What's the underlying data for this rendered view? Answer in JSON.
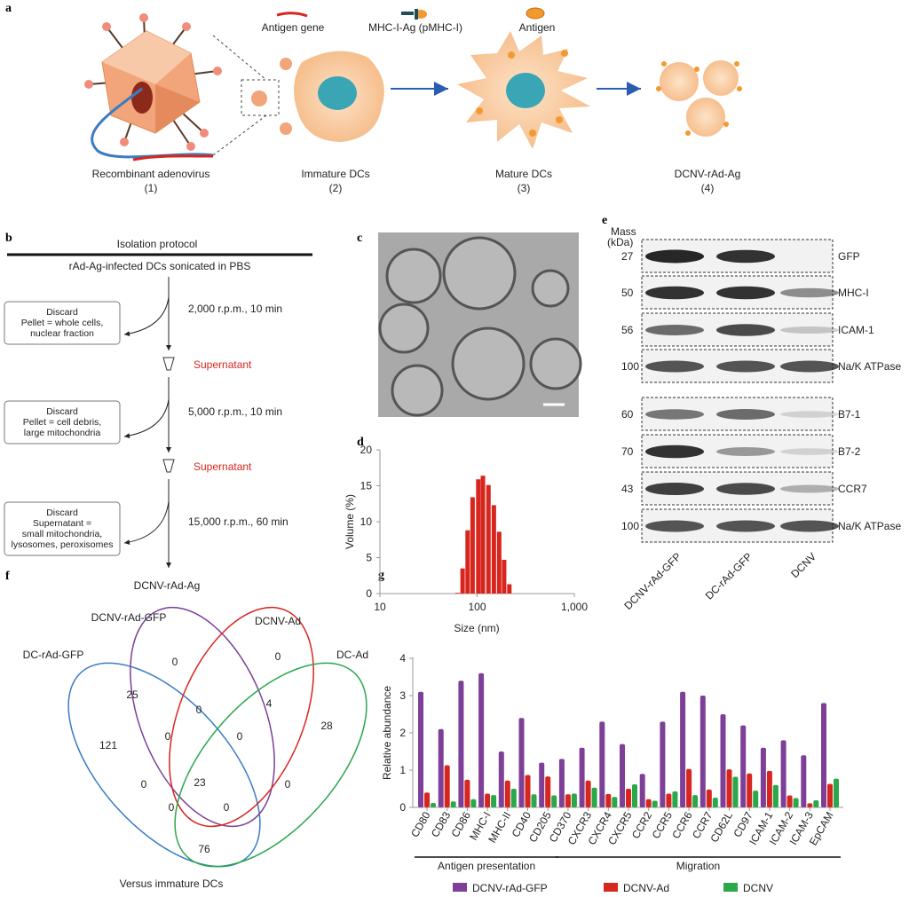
{
  "panel_labels": {
    "a": "a",
    "b": "b",
    "c": "c",
    "d": "d",
    "e": "e",
    "f": "f",
    "g": "g"
  },
  "a": {
    "legend": {
      "antigen_gene": "Antigen gene",
      "pmhc": "MHC-I-Ag (pMHC-I)",
      "antigen": "Antigen"
    },
    "steps": [
      {
        "name": "Recombinant adenovirus",
        "num": "(1)"
      },
      {
        "name": "Immature DCs",
        "num": "(2)"
      },
      {
        "name": "Mature DCs",
        "num": "(3)"
      },
      {
        "name": "DCNV-rAd-Ag",
        "num": "(4)"
      }
    ]
  },
  "b": {
    "title": "Isolation protocol",
    "start": "rAd-Ag-infected DCs sonicated in PBS",
    "spins": [
      "2,000 r.p.m., 10 min",
      "5,000 r.p.m., 10 min",
      "15,000 r.p.m., 60 min"
    ],
    "discards": [
      [
        "Discard",
        "Pellet = whole cells,",
        "nuclear fraction"
      ],
      [
        "Discard",
        "Pellet = cell debris,",
        "large mitochondria"
      ],
      [
        "Discard",
        "Supernatant =",
        "small mitochondria,",
        "lysosomes, peroxisomes"
      ]
    ],
    "supernatant": "Supernatant",
    "end": "DCNV-rAd-Ag"
  },
  "e": {
    "mass_header": [
      "Mass",
      "(kDa)"
    ],
    "rows": [
      {
        "mass": "27",
        "label": "GFP",
        "bands": [
          0.9,
          0.85,
          0.0
        ]
      },
      {
        "mass": "50",
        "label": "MHC-I",
        "bands": [
          0.85,
          0.85,
          0.45
        ]
      },
      {
        "mass": "56",
        "label": "ICAM-1",
        "bands": [
          0.6,
          0.75,
          0.2
        ]
      },
      {
        "mass": "100",
        "label": "Na/K ATPase",
        "bands": [
          0.7,
          0.7,
          0.7
        ]
      },
      {
        "mass": "60",
        "label": "B7-1",
        "bands": [
          0.55,
          0.6,
          0.15
        ]
      },
      {
        "mass": "70",
        "label": "B7-2",
        "bands": [
          0.85,
          0.4,
          0.15
        ]
      },
      {
        "mass": "43",
        "label": "CCR7",
        "bands": [
          0.8,
          0.75,
          0.3
        ]
      },
      {
        "mass": "100",
        "label": "Na/K ATPase",
        "bands": [
          0.7,
          0.7,
          0.7
        ]
      }
    ],
    "lanes": [
      "DCNV-rAd-GFP",
      "DC-rAd-GFP",
      "DCNV"
    ]
  },
  "f": {
    "sets": [
      "DC-rAd-GFP",
      "DCNV-rAd-GFP",
      "DCNV-Ad",
      "DC-Ad"
    ],
    "colors": [
      "#3a7cc4",
      "#7d3f98",
      "#d7261e",
      "#2aa84a"
    ],
    "counts": [
      "0",
      "0",
      "25",
      "0",
      "4",
      "28",
      "121",
      "0",
      "0",
      "0",
      "23",
      "0",
      "0",
      "0",
      "76"
    ],
    "caption": "Versus immature DCs"
  },
  "chart_data": [
    {
      "type": "bar",
      "xlabel": "Size (nm)",
      "ylabel": "Volume (%)",
      "x_scale": "log",
      "xlim": [
        10,
        1000
      ],
      "ylim": [
        0,
        20
      ],
      "xticks": [
        "10",
        "100",
        "1,000"
      ],
      "yticks": [
        "0",
        "5",
        "10",
        "15",
        "20"
      ],
      "x": [
        63,
        71,
        80,
        90,
        103,
        115,
        131,
        149,
        169,
        190,
        215
      ],
      "values": [
        0.1,
        3.5,
        8.8,
        13.4,
        15.9,
        16.4,
        15.1,
        12.3,
        8.6,
        4.7,
        1.3
      ],
      "color": "#d7261e"
    },
    {
      "type": "bar",
      "ylabel": "Relative abundance",
      "ylim": [
        0,
        4
      ],
      "yticks": [
        "0",
        "1",
        "2",
        "3",
        "4"
      ],
      "categories": [
        "CD80",
        "CD83",
        "CD86",
        "MHC-I",
        "MHC-II",
        "CD40",
        "CD205",
        "CD370",
        "CXCR3",
        "CXCR4",
        "CXCR5",
        "CCR2",
        "CCR5",
        "CCR6",
        "CCR7",
        "CD62L",
        "CD97",
        "ICAM-1",
        "ICAM-2",
        "ICAM-3",
        "EpCAM"
      ],
      "groups": [
        {
          "label": "Antigen presentation",
          "from": 0,
          "to": 6
        },
        {
          "label": "Migration",
          "from": 7,
          "to": 20
        }
      ],
      "series": [
        {
          "name": "DCNV-rAd-GFP",
          "color": "#7d3f98",
          "values": [
            3.1,
            2.1,
            3.4,
            3.6,
            1.5,
            2.4,
            1.2,
            1.3,
            1.6,
            2.3,
            1.7,
            0.9,
            2.3,
            3.1,
            3.0,
            2.5,
            2.2,
            1.6,
            1.8,
            1.4,
            2.8
          ]
        },
        {
          "name": "DCNV-Ad",
          "color": "#d7261e",
          "values": [
            0.4,
            1.13,
            0.74,
            0.37,
            0.72,
            0.87,
            0.83,
            0.35,
            0.72,
            0.36,
            0.5,
            0.22,
            0.37,
            1.03,
            0.48,
            1.02,
            0.91,
            0.98,
            0.32,
            0.11,
            0.63
          ]
        },
        {
          "name": "DCNV",
          "color": "#2aa84a",
          "values": [
            0.12,
            0.16,
            0.22,
            0.33,
            0.5,
            0.35,
            0.32,
            0.37,
            0.53,
            0.28,
            0.62,
            0.18,
            0.43,
            0.33,
            0.26,
            0.82,
            0.45,
            0.6,
            0.25,
            0.19,
            0.77
          ]
        }
      ],
      "legend": "bottom"
    }
  ]
}
